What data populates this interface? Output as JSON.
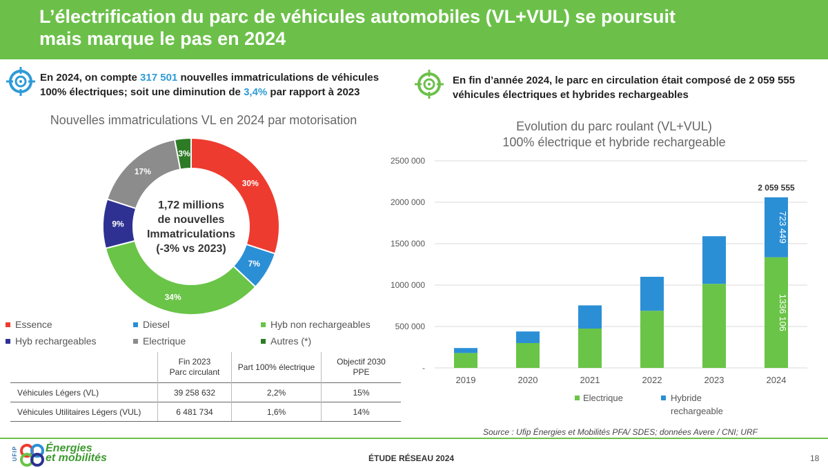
{
  "header": {
    "title_line1": "L’électrification du parc de véhicules automobiles (VL+VUL) se poursuit",
    "title_line2": "mais marque le pas en 2024"
  },
  "left_intro": {
    "p1": "En 2024, on compte ",
    "count": "317 501",
    "p2": " nouvelles immatriculations de véhicules",
    "p3": "100% électriques; soit une diminution de ",
    "pct": "3,4%",
    "p4": " par rapport à 2023"
  },
  "right_intro": {
    "line1": "En fin d’année 2024, le parc en circulation était composé de 2 059 555",
    "line2": "véhicules électriques et hybrides rechargeables"
  },
  "center_text": [
    "1,72 millions",
    "de nouvelles",
    "Immatriculations",
    "(-3% vs 2023)"
  ],
  "chart_data": [
    {
      "type": "pie",
      "title": "Nouvelles immatriculations VL en 2024 par motorisation",
      "categories": [
        "Essence",
        "Diesel",
        "Hyb non rechargeables",
        "Hyb rechargeables",
        "Electrique",
        "Autres (*)"
      ],
      "values": [
        30,
        7,
        34,
        9,
        17,
        3
      ],
      "labels": [
        "30%",
        "7%",
        "34%",
        "9%",
        "17%",
        "3%"
      ],
      "colors": [
        "#ee3b2f",
        "#2b8fd6",
        "#6ac447",
        "#2e3192",
        "#8c8c8c",
        "#2e7b26"
      ],
      "draw_order": [
        "Autres (*)",
        "Essence",
        "Diesel",
        "Hyb non rechargeables",
        "Hyb rechargeables",
        "Electrique"
      ],
      "center_text": "1,72 millions de nouvelles Immatriculations (-3% vs 2023)"
    },
    {
      "type": "bar",
      "stacked": true,
      "title": "Evolution du parc roulant (VL+VUL)",
      "subtitle": "100% électrique et hybride rechargeable",
      "categories": [
        "2019",
        "2020",
        "2021",
        "2022",
        "2023",
        "2024"
      ],
      "series": [
        {
          "name": "Electrique",
          "color": "#6ac447",
          "values": [
            180000,
            300000,
            475000,
            690000,
            1015000,
            1336106
          ]
        },
        {
          "name": "Hybride rechargeable",
          "color": "#2b8fd6",
          "values": [
            60000,
            140000,
            280000,
            410000,
            575000,
            723449
          ]
        }
      ],
      "data_labels": {
        "Electrique_2024": "1336 106",
        "Hybride_2024": "723 449",
        "total_2024": "2 059 555"
      },
      "ylim": [
        0,
        2500000
      ],
      "yticks": [
        "-",
        "500 000",
        "1000 000",
        "1500 000",
        "2000 000",
        "2500 000"
      ],
      "grid": true,
      "legend": "bottom"
    }
  ],
  "legend_labels": {
    "essence": "Essence",
    "diesel": "Diesel",
    "hyb_non": "Hyb non rechargeables",
    "hyb_rech": "Hyb rechargeables",
    "electrique": "Electrique",
    "autres": "Autres (*)"
  },
  "bar_legend": {
    "electrique": "Electrique",
    "hybride_1": "Hybride",
    "hybride_2": "rechargeable"
  },
  "table": {
    "headers": {
      "h1a": "Fin 2023",
      "h1b": "Parc circulant",
      "h2": "Part 100% électrique",
      "h3a": "Objectif 2030",
      "h3b": "PPE"
    },
    "rows": [
      {
        "label": "Véhicules Légers (VL)",
        "parc": "39 258 632",
        "part": "2,2%",
        "obj": "15%"
      },
      {
        "label": "Véhicules Utilitaires Légers (VUL)",
        "parc": "6 481 734",
        "part": "1,6%",
        "obj": "14%"
      }
    ]
  },
  "source": {
    "label": "Source",
    "text": " : Ufip Énergies et Mobilités PFA/ SDES; données Avere / CNI; URF"
  },
  "footer": {
    "study": "ÉTUDE RÉSEAU 2024",
    "page": "18",
    "logo_line1": "Énergies",
    "logo_line2": "et mobilités",
    "ufip": "UFIP"
  },
  "colors": {
    "banner": "#6cc04a",
    "accent_blue": "#2e9bd7"
  }
}
